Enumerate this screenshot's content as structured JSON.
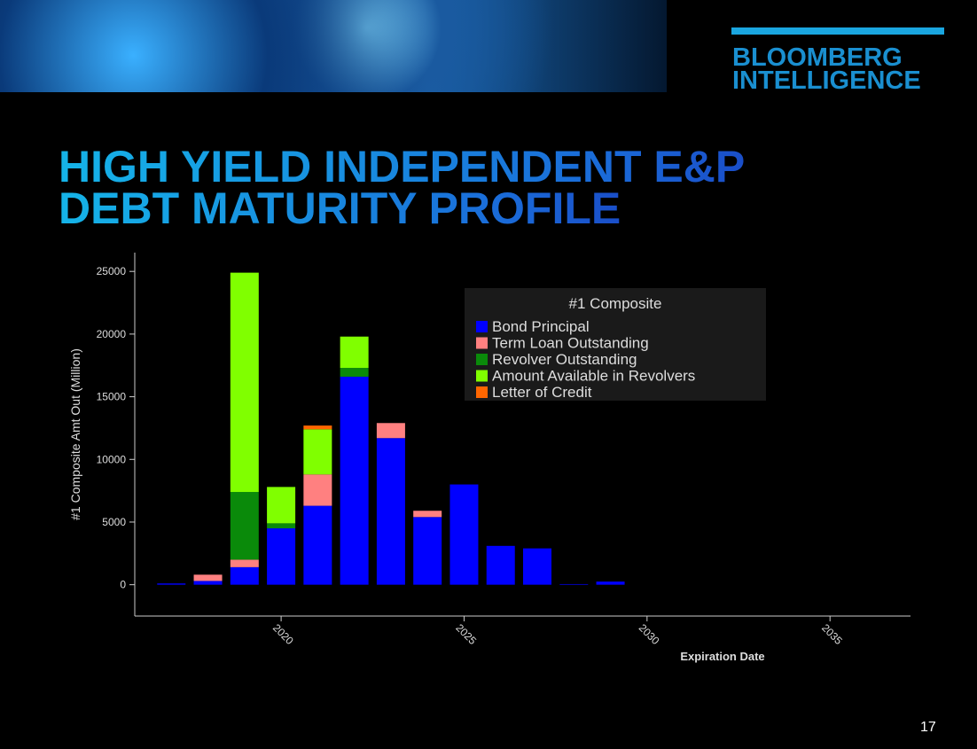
{
  "header": {
    "logo_line1": "BLOOMBERG",
    "logo_line2": "INTELLIGENCE",
    "title_line1": "HIGH YIELD INDEPENDENT E&P",
    "title_line2": "DEBT MATURITY PROFILE"
  },
  "page_number": "17",
  "chart_data": {
    "type": "stacked-bar",
    "y_label": "#1 Composite Amt Out (Million)",
    "x_label": "Expiration Date",
    "legend_title": "#1 Composite",
    "x": [
      2017,
      2018,
      2019,
      2020,
      2021,
      2022,
      2023,
      2024,
      2025,
      2026,
      2027,
      2028,
      2029
    ],
    "series": [
      {
        "name": "Bond Principal",
        "color": "#0000ff",
        "values": [
          100,
          300,
          1400,
          4500,
          6300,
          16600,
          11700,
          5400,
          8000,
          3100,
          2900,
          50,
          250
        ]
      },
      {
        "name": "Term Loan Outstanding",
        "color": "#ff8080",
        "values": [
          0,
          500,
          600,
          0,
          2500,
          0,
          1200,
          500,
          0,
          0,
          0,
          0,
          0
        ]
      },
      {
        "name": "Revolver Outstanding",
        "color": "#0a8a0a",
        "values": [
          0,
          0,
          5400,
          400,
          0,
          700,
          0,
          0,
          0,
          0,
          0,
          0,
          0
        ]
      },
      {
        "name": "Amount Available in Revolvers",
        "color": "#80ff00",
        "values": [
          0,
          0,
          17500,
          2900,
          3600,
          2500,
          0,
          0,
          0,
          0,
          0,
          0,
          0
        ]
      },
      {
        "name": "Letter of Credit",
        "color": "#ff6600",
        "values": [
          0,
          0,
          0,
          0,
          300,
          0,
          0,
          0,
          0,
          0,
          0,
          0,
          0
        ]
      }
    ],
    "xlim": [
      2016,
      2037.2
    ],
    "ylim": [
      -2500,
      26500
    ],
    "xticks": [
      2020,
      2025,
      2030,
      2035
    ],
    "yticks": [
      0,
      5000,
      10000,
      15000,
      20000,
      25000
    ],
    "legend_position": "upper right"
  }
}
